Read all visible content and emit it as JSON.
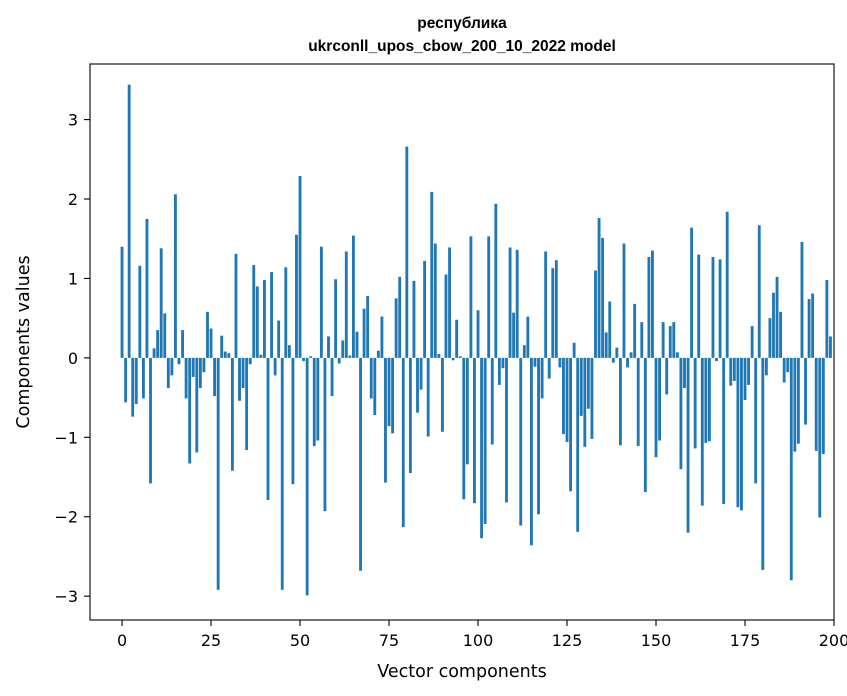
{
  "chart_data": {
    "type": "bar",
    "title": "республика",
    "subtitle": "ukrconll_upos_cbow_200_10_2022 model",
    "xlabel": "Vector components",
    "ylabel": "Components values",
    "xlim": [
      -9,
      200
    ],
    "ylim": [
      -3.3,
      3.7
    ],
    "xticks": [
      0,
      25,
      50,
      75,
      100,
      125,
      150,
      175,
      200
    ],
    "yticks": [
      3,
      2,
      1,
      0,
      -1,
      -2,
      -3
    ],
    "ytick_labels": [
      "3",
      "2",
      "1",
      "0",
      "−1",
      "−2",
      "−3"
    ],
    "bar_color": "#1f77b4",
    "x": [
      0,
      1,
      2,
      3,
      4,
      5,
      6,
      7,
      8,
      9,
      10,
      11,
      12,
      13,
      14,
      15,
      16,
      17,
      18,
      19,
      20,
      21,
      22,
      23,
      24,
      25,
      26,
      27,
      28,
      29,
      30,
      31,
      32,
      33,
      34,
      35,
      36,
      37,
      38,
      39,
      40,
      41,
      42,
      43,
      44,
      45,
      46,
      47,
      48,
      49,
      50,
      51,
      52,
      53,
      54,
      55,
      56,
      57,
      58,
      59,
      60,
      61,
      62,
      63,
      64,
      65,
      66,
      67,
      68,
      69,
      70,
      71,
      72,
      73,
      74,
      75,
      76,
      77,
      78,
      79,
      80,
      81,
      82,
      83,
      84,
      85,
      86,
      87,
      88,
      89,
      90,
      91,
      92,
      93,
      94,
      95,
      96,
      97,
      98,
      99,
      100,
      101,
      102,
      103,
      104,
      105,
      106,
      107,
      108,
      109,
      110,
      111,
      112,
      113,
      114,
      115,
      116,
      117,
      118,
      119,
      120,
      121,
      122,
      123,
      124,
      125,
      126,
      127,
      128,
      129,
      130,
      131,
      132,
      133,
      134,
      135,
      136,
      137,
      138,
      139,
      140,
      141,
      142,
      143,
      144,
      145,
      146,
      147,
      148,
      149,
      150,
      151,
      152,
      153,
      154,
      155,
      156,
      157,
      158,
      159,
      160,
      161,
      162,
      163,
      164,
      165,
      166,
      167,
      168,
      169,
      170,
      171,
      172,
      173,
      174,
      175,
      176,
      177,
      178,
      179,
      180,
      181,
      182,
      183,
      184,
      185,
      186,
      187,
      188,
      189,
      190,
      191,
      192,
      193,
      194,
      195,
      196,
      197,
      198,
      199
    ],
    "values": [
      1.4,
      -0.56,
      3.44,
      -0.74,
      -0.58,
      1.16,
      -0.51,
      1.75,
      -1.58,
      0.12,
      0.35,
      1.38,
      0.56,
      -0.38,
      -0.22,
      2.06,
      -0.08,
      0.35,
      -0.51,
      -1.33,
      -0.24,
      -1.19,
      -0.38,
      -0.18,
      0.58,
      0.37,
      -0.48,
      -2.92,
      0.28,
      0.08,
      0.06,
      -1.42,
      1.31,
      -0.54,
      -0.38,
      -1.16,
      -0.08,
      1.17,
      0.9,
      0.04,
      0.98,
      -1.79,
      1.08,
      -0.22,
      0.47,
      -2.92,
      1.14,
      0.16,
      -1.59,
      1.55,
      2.29,
      -0.04,
      -2.99,
      0.02,
      -1.11,
      -1.04,
      1.4,
      -1.93,
      0.27,
      -0.48,
      0.99,
      -0.07,
      0.22,
      1.34,
      0.03,
      1.54,
      0.33,
      -2.68,
      0.62,
      0.78,
      -0.51,
      -0.72,
      0.09,
      0.52,
      -1.57,
      -0.86,
      -0.95,
      0.75,
      1.02,
      -2.13,
      2.66,
      -1.45,
      0.97,
      -0.69,
      -0.4,
      1.22,
      -0.99,
      2.09,
      1.44,
      0.05,
      -0.93,
      1.05,
      1.39,
      -0.03,
      0.48,
      0.02,
      -1.78,
      -1.34,
      1.53,
      -1.83,
      0.6,
      -2.27,
      -2.09,
      1.53,
      -1.09,
      1.94,
      -0.34,
      -0.13,
      -1.82,
      1.39,
      0.57,
      1.36,
      -2.11,
      0.16,
      0.52,
      -2.36,
      -0.11,
      -1.97,
      -0.51,
      1.34,
      -0.26,
      1.13,
      1.23,
      -0.12,
      -0.96,
      -1.06,
      -1.68,
      0.19,
      -2.19,
      -0.73,
      -1.12,
      -0.64,
      -1.02,
      1.1,
      1.76,
      1.51,
      0.32,
      0.71,
      -0.06,
      0.13,
      -1.1,
      1.44,
      -0.12,
      0.07,
      0.68,
      -1.11,
      0.45,
      -1.69,
      1.27,
      1.35,
      -1.25,
      -1.04,
      0.45,
      -0.46,
      0.4,
      0.45,
      0.07,
      -1.4,
      -0.38,
      -2.2,
      1.64,
      -1.14,
      1.3,
      -1.86,
      -1.07,
      -1.05,
      1.27,
      -0.04,
      1.24,
      -1.84,
      1.84,
      -0.35,
      -0.29,
      -1.88,
      -1.92,
      -0.53,
      -0.34,
      0.4,
      -1.58,
      1.67,
      -2.67,
      -0.22,
      0.5,
      0.82,
      1.02,
      0.58,
      -0.31,
      -0.18,
      -2.8,
      -1.18,
      -1.08,
      1.46,
      -0.84,
      0.74,
      0.81,
      -1.17,
      -2.01,
      -1.21,
      0.98,
      0.27
    ]
  }
}
